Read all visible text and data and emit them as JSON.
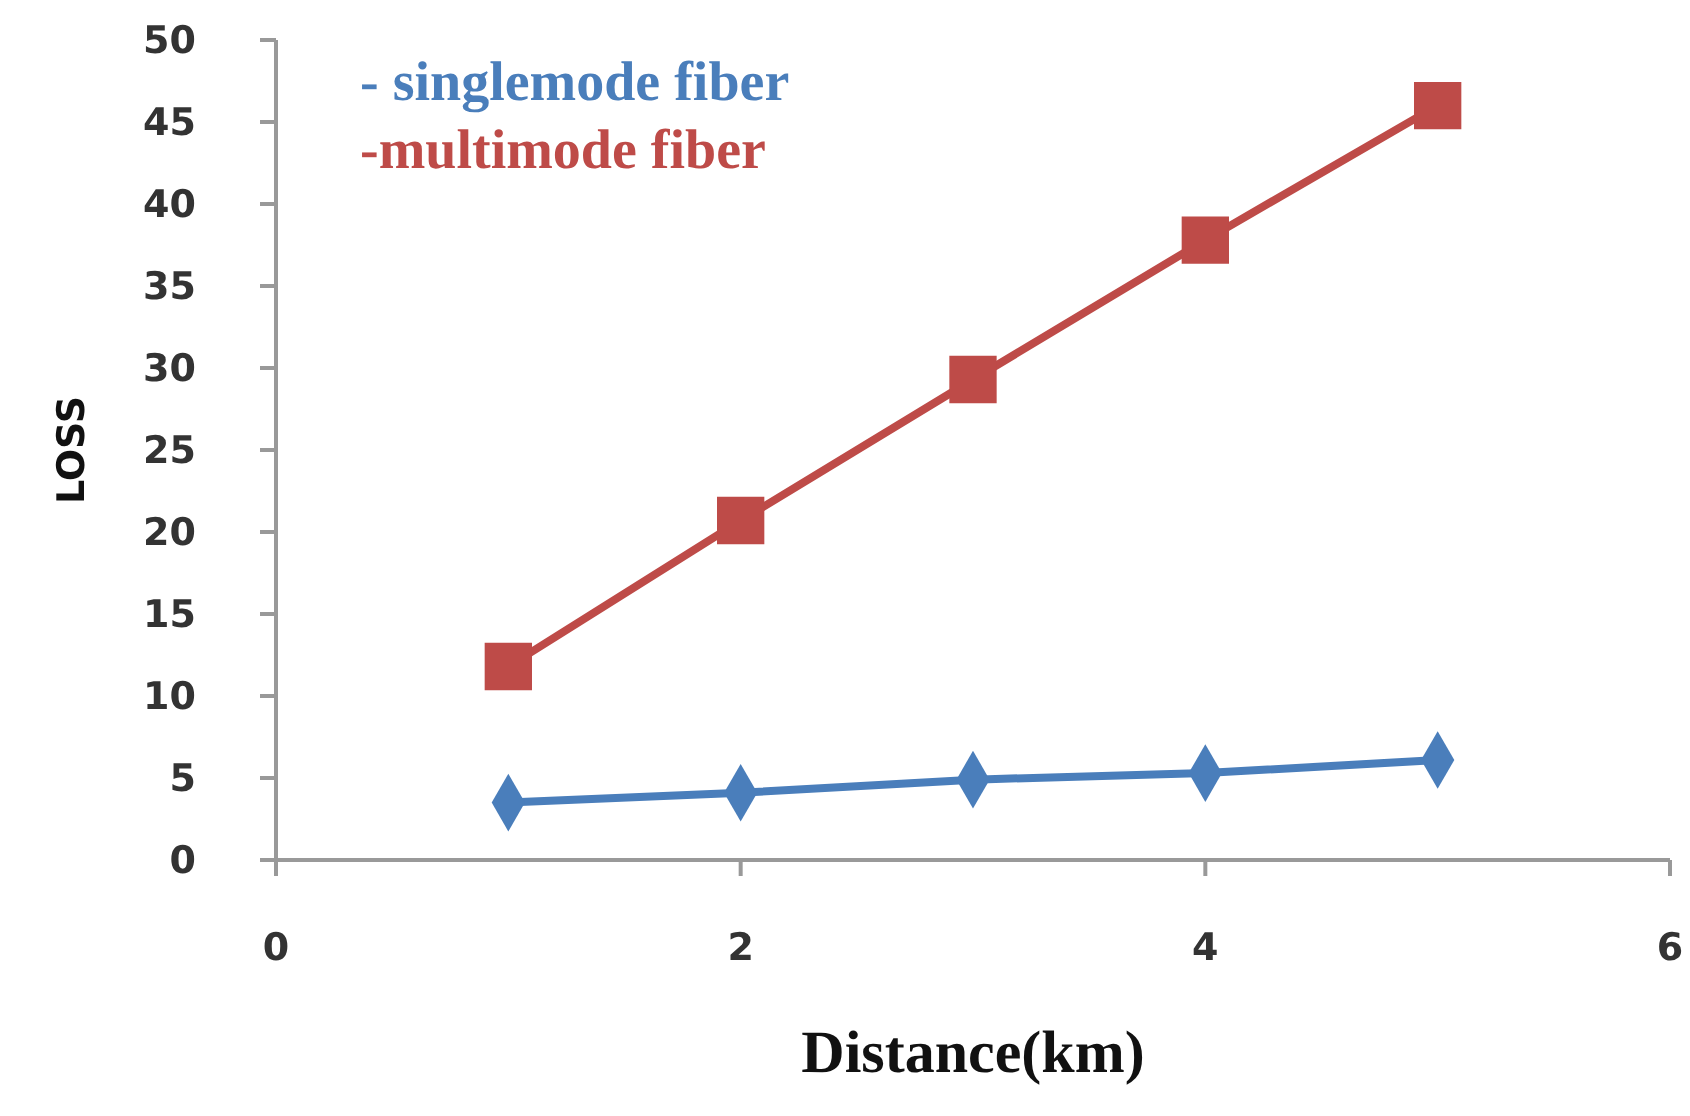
{
  "chart_data": {
    "type": "line",
    "xlabel": "Distance(km)",
    "ylabel": "LOSS",
    "x": [
      1,
      2,
      3,
      4,
      5
    ],
    "series": [
      {
        "name": "- singlemode fiber",
        "color": "#4a7ebb",
        "marker": "diamond",
        "values": [
          3.5,
          4.1,
          4.9,
          5.3,
          6.1
        ]
      },
      {
        "name": "-multimode fiber",
        "color": "#be4b48",
        "marker": "square",
        "values": [
          11.8,
          20.7,
          29.3,
          37.8,
          46
        ]
      }
    ],
    "xlim": [
      0,
      6
    ],
    "xticks": [
      0,
      2,
      4,
      6
    ],
    "ylim": [
      0,
      50
    ],
    "yticks": [
      0,
      5,
      10,
      15,
      20,
      25,
      30,
      35,
      40,
      45,
      50
    ],
    "grid": false,
    "legend": "top left"
  }
}
